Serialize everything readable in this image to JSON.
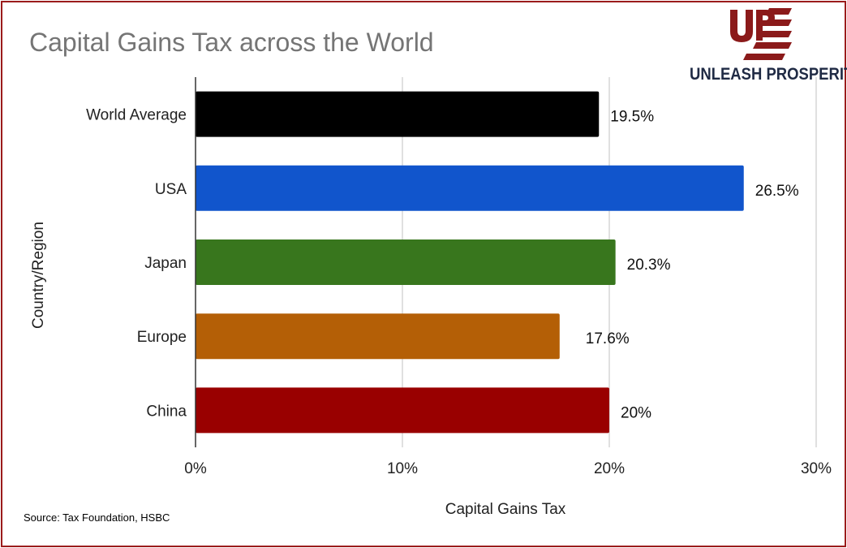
{
  "chart_data": {
    "type": "bar",
    "orientation": "horizontal",
    "title": "Capital Gains Tax across the World",
    "xlabel": "Capital Gains Tax",
    "ylabel": "Country/Region",
    "categories": [
      "World Average",
      "USA",
      "Japan",
      "Europe",
      "China"
    ],
    "values": [
      19.5,
      26.5,
      20.3,
      17.6,
      20
    ],
    "value_labels": [
      "19.5%",
      "26.5%",
      "20.3%",
      "17.6%",
      "20%"
    ],
    "colors": [
      "#000000",
      "#1155cc",
      "#38761d",
      "#b45f06",
      "#990000"
    ],
    "xlim": [
      0,
      30
    ],
    "xticks": [
      0,
      10,
      20,
      30
    ],
    "xtick_labels": [
      "0%",
      "10%",
      "20%",
      "30%"
    ],
    "grid": "vertical",
    "legend": "none"
  },
  "source": "Source: Tax Foundation, HSBC",
  "logo": {
    "text": "UNLEASH PROSPERITY",
    "mark": "UP"
  },
  "colors": {
    "frame": "#9b1c1c",
    "title": "#757575",
    "grid": "#cccccc"
  }
}
